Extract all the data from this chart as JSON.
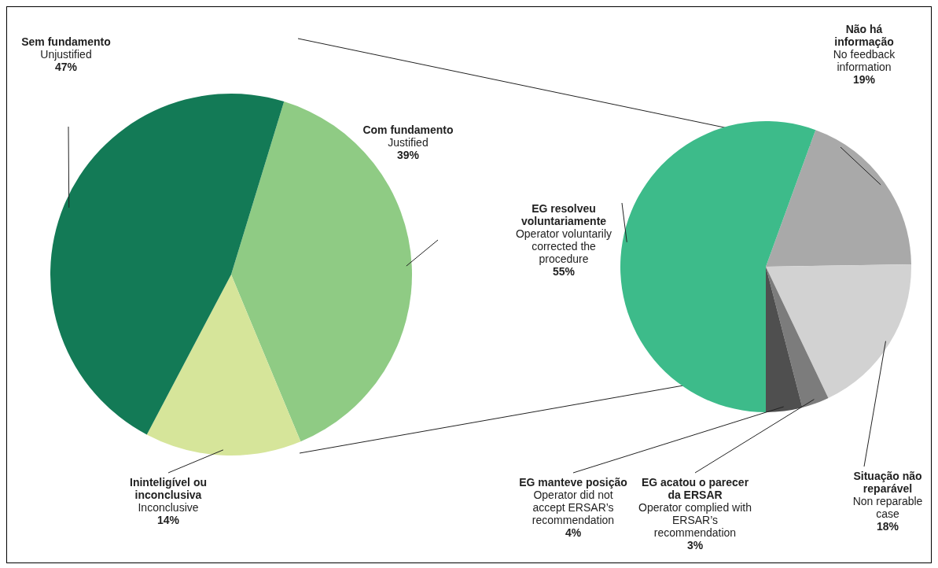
{
  "chart_data": [
    {
      "type": "pie",
      "categories": [
        "Com fundamento\nJustified",
        "Ininteligível ou inconclusiva\nInconclusive",
        "Sem fundamento\nUnjustified"
      ],
      "values": [
        39,
        14,
        47
      ],
      "colors": [
        "#8fcb84",
        "#d6e59a",
        "#137a56"
      ],
      "value_labels": [
        "39%",
        "14%",
        "47%"
      ]
    },
    {
      "type": "pie",
      "categories": [
        "Não há informação\nNo feedback information",
        "Situação não reparável\nNon reparable case",
        "EG acatou o parecer da ERSAR\nOperator complied with ERSAR’s recommendation",
        "EG manteve posição\nOperator did not accept ERSAR’s recommendation",
        "EG resolveu voluntariamente\nOperator voluntarily corrected the procedure"
      ],
      "values": [
        19,
        18,
        3,
        4,
        55
      ],
      "colors": [
        "#a9a9a9",
        "#d2d2d2",
        "#7c7c7c",
        "#4f4f4f",
        "#3dbb8a"
      ],
      "value_labels": [
        "19%",
        "18%",
        "3%",
        "4%",
        "55%"
      ]
    }
  ]
}
